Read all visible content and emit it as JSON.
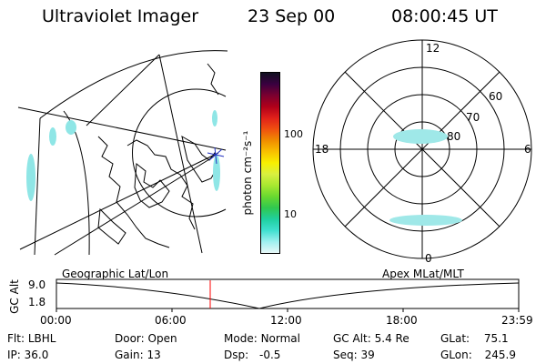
{
  "header": {
    "title": "Ultraviolet Imager",
    "date": "23 Sep 00",
    "time": "08:00:45 UT"
  },
  "colorbar": {
    "unit_label": "photon cm⁻²s⁻¹",
    "ticks": [
      "100",
      "10"
    ],
    "colors": [
      "#101020",
      "#3a0040",
      "#7a0030",
      "#b0001a",
      "#e0201a",
      "#f05010",
      "#f08c00",
      "#f8c000",
      "#f8f000",
      "#d8f040",
      "#a8e830",
      "#68d830",
      "#30c850",
      "#20d0a0",
      "#40e0d0",
      "#9ff0f0",
      "#e8f8f8"
    ]
  },
  "polar_plot": {
    "labels": {
      "top": "12",
      "left": "18",
      "right": "6",
      "bottom": "0",
      "r60": "60",
      "r70": "70",
      "r80": "80"
    }
  },
  "timeline": {
    "left_title": "Geographic Lat/Lon",
    "right_title": "Apex MLat/MLT",
    "axis_label": "GC Alt",
    "y_top": "9.0",
    "y_bottom": "1.8",
    "ticks": [
      "00:00",
      "06:00",
      "12:00",
      "18:00",
      "23:59"
    ],
    "marker_color": "#ff0000"
  },
  "status": {
    "row1": [
      {
        "label": "Flt:",
        "value": "LBHL"
      },
      {
        "label": "Door:",
        "value": "Open"
      },
      {
        "label": "Mode:",
        "value": "Normal"
      },
      {
        "label": "GC Alt:",
        "value": "5.4 Re"
      },
      {
        "label": "GLat:",
        "value": "75.1"
      }
    ],
    "row2": [
      {
        "label": "IP:",
        "value": "36.0"
      },
      {
        "label": "Gain:",
        "value": "13"
      },
      {
        "label": "Dsp:",
        "value": "-0.5"
      },
      {
        "label": "Seq:",
        "value": "39"
      },
      {
        "label": "GLon:",
        "value": "245.9"
      }
    ]
  }
}
